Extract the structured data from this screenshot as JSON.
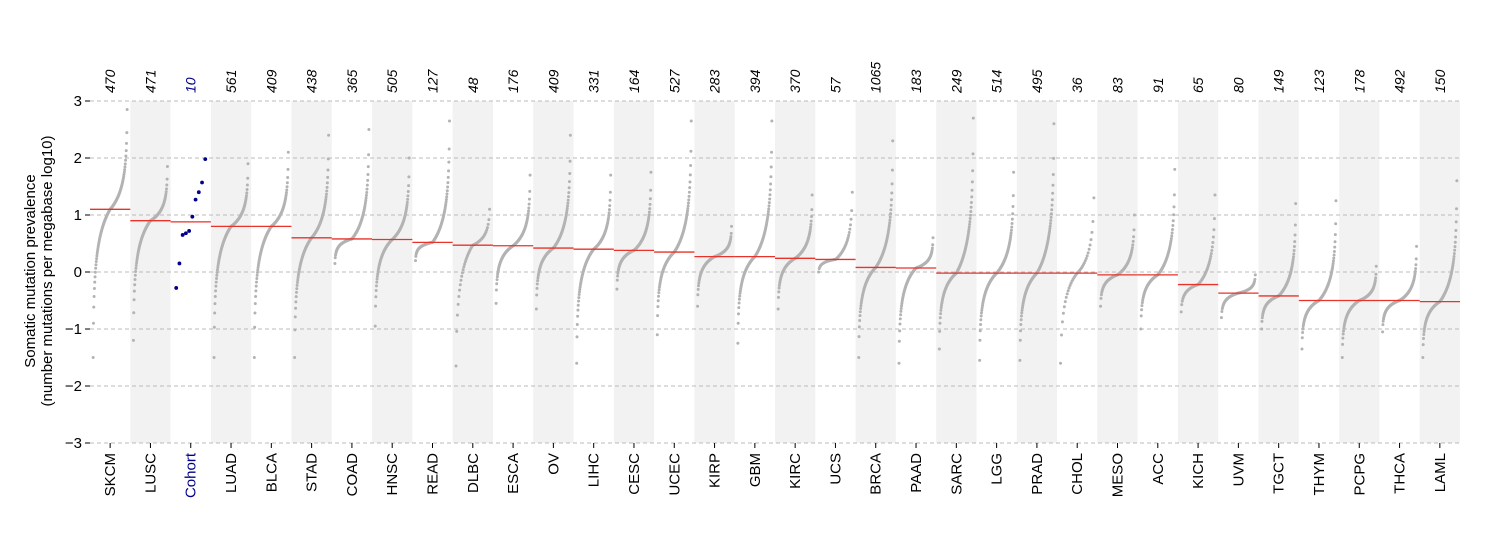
{
  "chart_data": {
    "type": "scatter",
    "ylabel": "Somatic mutation prevalence",
    "ylabel_sub": "(number mutations per megabase log10)",
    "ylim": [
      -3,
      3
    ],
    "yticks": [
      "3",
      "2",
      "1",
      "0",
      "−1",
      "−2",
      "−3"
    ],
    "grid": "horizontal-dashed",
    "colors": {
      "points": "#b3b3b3",
      "highlight": "#00008b",
      "median": "#e8322a",
      "band": "#f2f2f2",
      "grid": "#bbbbbb"
    },
    "categories": [
      {
        "name": "SKCM",
        "n": "470",
        "median": 1.1,
        "min": -1.5,
        "max": 2.85
      },
      {
        "name": "LUSC",
        "n": "471",
        "median": 0.9,
        "min": -1.2,
        "max": 1.85
      },
      {
        "name": "Cohort",
        "n": "10",
        "median": 0.88,
        "min": -0.28,
        "max": 1.98,
        "highlight": true,
        "points": [
          -0.28,
          0.15,
          0.65,
          0.68,
          0.72,
          0.97,
          1.27,
          1.4,
          1.57,
          1.98
        ]
      },
      {
        "name": "LUAD",
        "n": "561",
        "median": 0.8,
        "min": -1.5,
        "max": 1.9
      },
      {
        "name": "BLCA",
        "n": "409",
        "median": 0.8,
        "min": -1.5,
        "max": 2.1
      },
      {
        "name": "STAD",
        "n": "438",
        "median": 0.6,
        "min": -1.5,
        "max": 2.4
      },
      {
        "name": "COAD",
        "n": "365",
        "median": 0.58,
        "min": 0.15,
        "max": 2.5
      },
      {
        "name": "HNSC",
        "n": "505",
        "median": 0.57,
        "min": -0.95,
        "max": 2.0
      },
      {
        "name": "READ",
        "n": "127",
        "median": 0.52,
        "min": 0.2,
        "max": 2.65
      },
      {
        "name": "DLBC",
        "n": "48",
        "median": 0.47,
        "min": -1.65,
        "max": 1.1
      },
      {
        "name": "ESCA",
        "n": "176",
        "median": 0.46,
        "min": -0.55,
        "max": 1.7
      },
      {
        "name": "OV",
        "n": "409",
        "median": 0.42,
        "min": -0.65,
        "max": 2.4
      },
      {
        "name": "LIHC",
        "n": "331",
        "median": 0.4,
        "min": -1.6,
        "max": 1.7
      },
      {
        "name": "CESC",
        "n": "164",
        "median": 0.38,
        "min": -0.3,
        "max": 1.75
      },
      {
        "name": "UCEC",
        "n": "527",
        "median": 0.35,
        "min": -1.1,
        "max": 2.65
      },
      {
        "name": "KIRP",
        "n": "283",
        "median": 0.27,
        "min": -0.6,
        "max": 0.8
      },
      {
        "name": "GBM",
        "n": "394",
        "median": 0.27,
        "min": -1.25,
        "max": 2.65
      },
      {
        "name": "KIRC",
        "n": "370",
        "median": 0.24,
        "min": -0.65,
        "max": 1.35
      },
      {
        "name": "UCS",
        "n": "57",
        "median": 0.22,
        "min": 0.0,
        "max": 1.4
      },
      {
        "name": "BRCA",
        "n": "1065",
        "median": 0.08,
        "min": -1.5,
        "max": 2.3
      },
      {
        "name": "PAAD",
        "n": "183",
        "median": 0.07,
        "min": -1.6,
        "max": 0.6
      },
      {
        "name": "SARC",
        "n": "249",
        "median": -0.02,
        "min": -1.35,
        "max": 2.7
      },
      {
        "name": "LGG",
        "n": "514",
        "median": -0.02,
        "min": -1.55,
        "max": 1.75
      },
      {
        "name": "PRAD",
        "n": "495",
        "median": -0.02,
        "min": -1.55,
        "max": 2.6
      },
      {
        "name": "CHOL",
        "n": "36",
        "median": -0.02,
        "min": -1.6,
        "max": 1.3
      },
      {
        "name": "MESO",
        "n": "83",
        "median": -0.05,
        "min": -0.6,
        "max": 1.0
      },
      {
        "name": "ACC",
        "n": "91",
        "median": -0.05,
        "min": -1.0,
        "max": 1.8
      },
      {
        "name": "KICH",
        "n": "65",
        "median": -0.22,
        "min": -0.7,
        "max": 1.35
      },
      {
        "name": "UVM",
        "n": "80",
        "median": -0.37,
        "min": -0.8,
        "max": -0.05
      },
      {
        "name": "TGCT",
        "n": "149",
        "median": -0.42,
        "min": -1.0,
        "max": 1.2
      },
      {
        "name": "THYM",
        "n": "123",
        "median": -0.5,
        "min": -1.35,
        "max": 1.25
      },
      {
        "name": "PCPG",
        "n": "178",
        "median": -0.5,
        "min": -1.5,
        "max": 0.1
      },
      {
        "name": "THCA",
        "n": "492",
        "median": -0.5,
        "min": -1.05,
        "max": 0.45
      },
      {
        "name": "LAML",
        "n": "150",
        "median": -0.52,
        "min": -1.5,
        "max": 1.6
      }
    ]
  }
}
